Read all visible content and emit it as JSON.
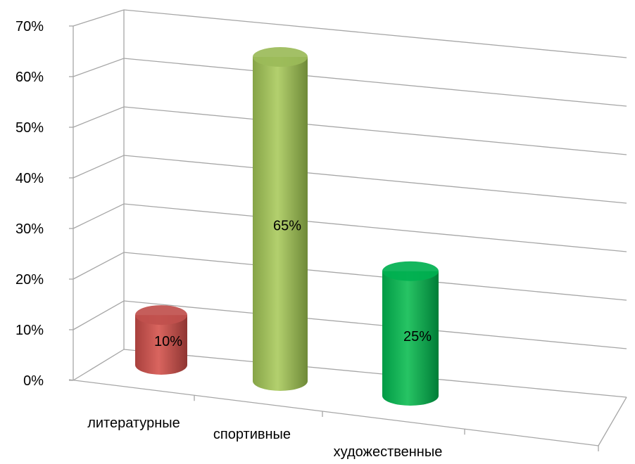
{
  "chart_data": {
    "type": "bar",
    "style": "3d-cylinder",
    "categories": [
      "литературные",
      "спортивные",
      "художественные"
    ],
    "values": [
      10,
      65,
      25
    ],
    "data_labels": [
      "10%",
      "65%",
      "25%"
    ],
    "colors": [
      "#c0504d",
      "#9bbb59",
      "#00b050"
    ],
    "yticks": [
      "0%",
      "10%",
      "20%",
      "30%",
      "40%",
      "50%",
      "60%",
      "70%"
    ],
    "ylim": [
      0,
      70
    ],
    "grid": true,
    "legend": "none"
  }
}
